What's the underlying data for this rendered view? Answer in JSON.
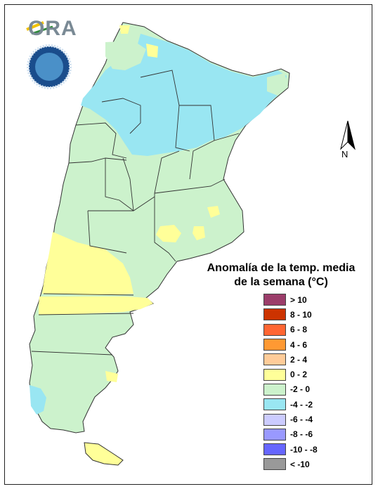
{
  "logo": {
    "text": "ORA"
  },
  "legend": {
    "title_line1": "Anomalía de la temp. media",
    "title_line2": "de la semana (°C)",
    "items": [
      {
        "label": "> 10",
        "color": "#9b3d6a"
      },
      {
        "label": "8 - 10",
        "color": "#cc3300"
      },
      {
        "label": "6 - 8",
        "color": "#ff6633"
      },
      {
        "label": "4 - 6",
        "color": "#ff9933"
      },
      {
        "label": "2 - 4",
        "color": "#ffcc99"
      },
      {
        "label": "0 - 2",
        "color": "#ffff99"
      },
      {
        "label": "-2 - 0",
        "color": "#ccf2cc"
      },
      {
        "label": "-4 - -2",
        "color": "#99e6f2"
      },
      {
        "label": "-6 - -4",
        "color": "#ccccff"
      },
      {
        "label": "-8 - -6",
        "color": "#9999ff"
      },
      {
        "label": "-10 - -8",
        "color": "#6666ff"
      },
      {
        "label": "< -10",
        "color": "#999999"
      }
    ]
  },
  "north": {
    "label": "N"
  }
}
